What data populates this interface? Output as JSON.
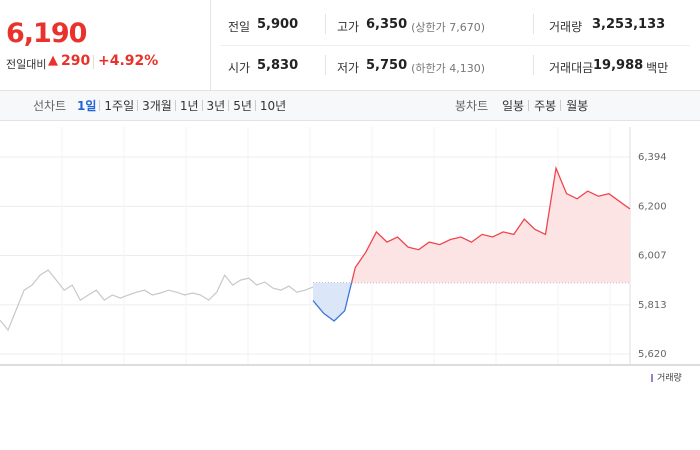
{
  "header": {
    "price": "6,190",
    "change_label": "전일대비",
    "change": "290",
    "change_pct": "+4.92%"
  },
  "stats": [
    [
      {
        "label": "전일",
        "value": "5,900"
      },
      {
        "label": "고가",
        "value": "6,350",
        "note": "(상한가 7,670)"
      },
      {
        "label": "거래량",
        "value": "3,253,133"
      }
    ],
    [
      {
        "label": "시가",
        "value": "5,830"
      },
      {
        "label": "저가",
        "value": "5,750",
        "note": "(하한가 4,130)"
      },
      {
        "label": "거래대금",
        "value": "19,988",
        "unit": "백만"
      }
    ]
  ],
  "tabs": {
    "line_label": "선차트",
    "line_periods": [
      "1일",
      "1주일",
      "3개월",
      "1년",
      "3년",
      "5년",
      "10년"
    ],
    "candle_label": "봉차트",
    "candle_periods": [
      "일봉",
      "주봉",
      "월봉"
    ]
  },
  "chart_data": {
    "type": "line",
    "ylim": [
      5577,
      6512
    ],
    "yticks": [
      {
        "value": 5620,
        "label": "5,620"
      },
      {
        "value": 5813,
        "label": "5,813"
      },
      {
        "value": 6007,
        "label": "6,007"
      },
      {
        "value": 6200,
        "label": "6,200"
      },
      {
        "value": 6394,
        "label": "6,394"
      }
    ],
    "grid": true,
    "baseline": 5900,
    "series": [
      {
        "color": "#c8c8c8",
        "values": [
          5753,
          5714,
          5793,
          5871,
          5891,
          5930,
          5950,
          5911,
          5871,
          5891,
          5832,
          5852,
          5871,
          5832,
          5852,
          5840,
          5852,
          5863,
          5871,
          5852,
          5860,
          5871,
          5863,
          5852,
          5860,
          5852,
          5832,
          5863,
          5930,
          5891,
          5911,
          5918,
          5891,
          5903,
          5879,
          5871,
          5887,
          5863,
          5871,
          5883
        ]
      },
      {
        "color": "#f0454d",
        "values": [
          5830,
          5780,
          5750,
          5790,
          5960,
          6020,
          6100,
          6060,
          6080,
          6040,
          6030,
          6060,
          6050,
          6070,
          6080,
          6060,
          6090,
          6080,
          6100,
          6090,
          6150,
          6110,
          6090,
          6350,
          6250,
          6230,
          6260,
          6240,
          6250,
          6220,
          6190
        ]
      }
    ],
    "volume_label": "거래량"
  }
}
